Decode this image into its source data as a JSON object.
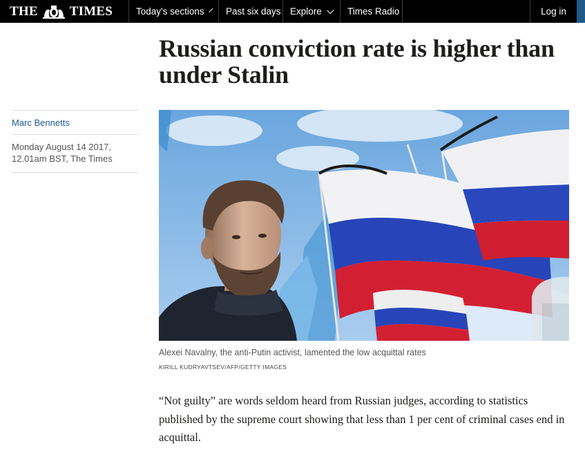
{
  "nav": {
    "masthead_left": "THE",
    "masthead_right": "TIMES",
    "crest_icon": "royal-crest-icon",
    "sections_label": "Today's sections",
    "past_label": "Past six days",
    "explore_label": "Explore",
    "radio_label": "Times Radio",
    "login_label": "Log in",
    "accent_color": "#1e5a8a"
  },
  "article": {
    "headline": "Russian conviction rate is higher than under Stalin",
    "author": "Marc Bennetts",
    "date_line1": "Monday August 14 2017,",
    "date_line2": "12.01am BST, The Times",
    "caption": "Alexei Navalny, the anti-Putin activist, lamented the low acquittal rates",
    "credit": "KIRILL KUDRYAVTSEV/AFP/GETTY IMAGES",
    "body": "“Not guilty” are words seldom heard from Russian judges, according to statistics published by the supreme court showing that less than 1 per cent of criminal cases end in acquittal."
  },
  "colors": {
    "author_link": "#1f5a92",
    "flag_white": "#f2f2f4",
    "flag_blue": "#2745b8",
    "flag_red": "#d22032"
  }
}
